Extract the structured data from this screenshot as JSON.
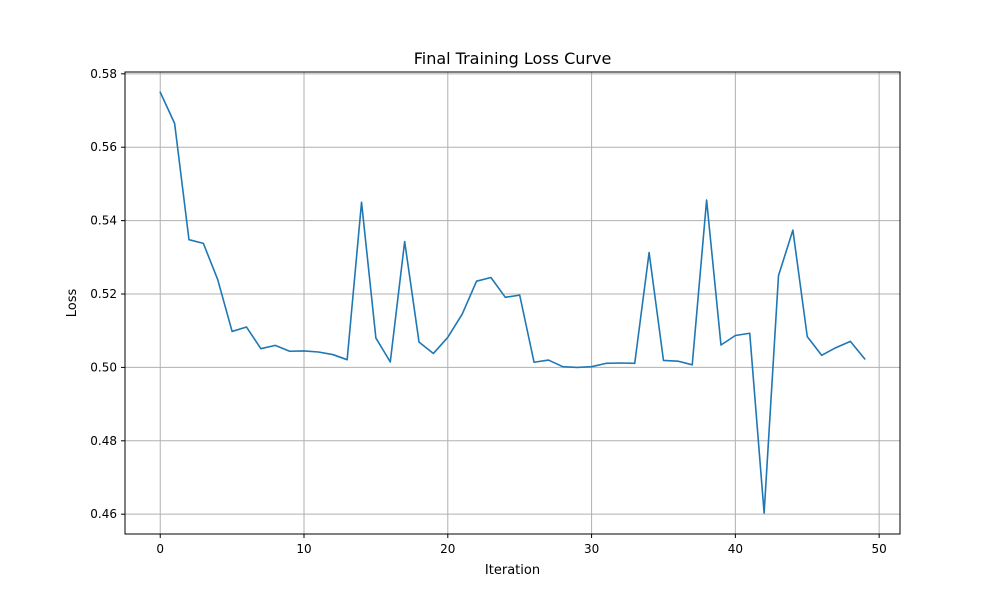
{
  "chart_data": {
    "type": "line",
    "title": "Final Training Loss Curve",
    "xlabel": "Iteration",
    "ylabel": "Loss",
    "xlim": [
      -2.45,
      51.45
    ],
    "ylim": [
      0.4546,
      0.5805
    ],
    "xticks": [
      0,
      10,
      20,
      30,
      40,
      50
    ],
    "xtick_labels": [
      "0",
      "10",
      "20",
      "30",
      "40",
      "50"
    ],
    "yticks": [
      0.46,
      0.48,
      0.5,
      0.52,
      0.54,
      0.56,
      0.58
    ],
    "ytick_labels": [
      "0.46",
      "0.48",
      "0.50",
      "0.52",
      "0.54",
      "0.56",
      "0.58"
    ],
    "grid": true,
    "legend": "none",
    "series": [
      {
        "color": "#1f77b4",
        "x": [
          0,
          1,
          2,
          3,
          4,
          5,
          6,
          7,
          8,
          9,
          10,
          11,
          12,
          13,
          14,
          15,
          16,
          17,
          18,
          19,
          20,
          21,
          22,
          23,
          24,
          25,
          26,
          27,
          28,
          29,
          30,
          31,
          32,
          33,
          34,
          35,
          36,
          37,
          38,
          39,
          40,
          41,
          42,
          43,
          44,
          45,
          46,
          47,
          48,
          49
        ],
        "y": [
          0.575,
          0.5665,
          0.5348,
          0.5338,
          0.5239,
          0.5098,
          0.511,
          0.5051,
          0.506,
          0.5044,
          0.5045,
          0.5042,
          0.5035,
          0.5021,
          0.545,
          0.508,
          0.5015,
          0.5343,
          0.5069,
          0.5038,
          0.5082,
          0.5145,
          0.5235,
          0.5245,
          0.5191,
          0.5197,
          0.5014,
          0.502,
          0.5002,
          0.5,
          0.5002,
          0.5011,
          0.5012,
          0.5011,
          0.5313,
          0.5019,
          0.5017,
          0.5007,
          0.5456,
          0.5061,
          0.5087,
          0.5093,
          0.4603,
          0.525,
          0.5374,
          0.5084,
          0.5033,
          0.5054,
          0.5071,
          0.5023
        ]
      }
    ]
  }
}
